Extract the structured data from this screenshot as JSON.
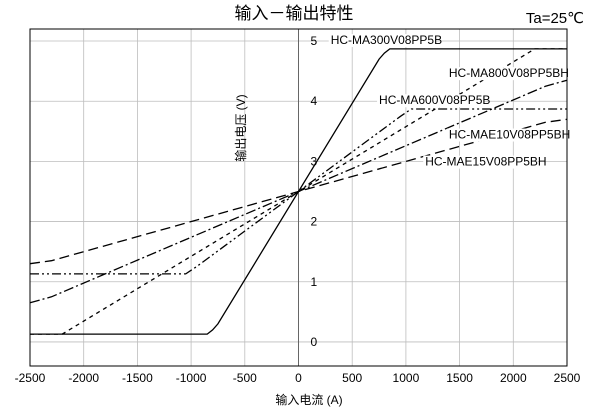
{
  "chart_data": {
    "type": "line",
    "title": "输入－输出特性",
    "condition": "Ta=25℃",
    "xlabel": "输入电流 (A)",
    "ylabel": "输出电压 (V)",
    "xlim": [
      -2500,
      2500
    ],
    "ylim": [
      -0.4,
      5.2
    ],
    "x_ticks": [
      -2500,
      -2000,
      -1500,
      -1000,
      -500,
      0,
      500,
      1000,
      1500,
      2000,
      2500
    ],
    "y_ticks": [
      0,
      1,
      2,
      3,
      4,
      5
    ],
    "grid": true,
    "series": [
      {
        "name": "HC-MA300V08PP5B",
        "dash": "solid",
        "x": [
          -2500,
          -850,
          -800,
          -750,
          750,
          800,
          850,
          2500
        ],
        "y": [
          0.13,
          0.13,
          0.2,
          0.3,
          4.7,
          4.8,
          4.87,
          4.87
        ]
      },
      {
        "name": "HC-MA800V08PP5BH",
        "dash": "dash",
        "x": [
          -2500,
          -2200,
          2200,
          2500
        ],
        "y": [
          0.13,
          0.13,
          4.87,
          4.87
        ]
      },
      {
        "name": "HC-MA600V08PP5B",
        "dash": "dashdotdot",
        "x": [
          -2500,
          -1050,
          -950,
          950,
          1050,
          2500
        ],
        "y": [
          1.13,
          1.13,
          1.25,
          3.75,
          3.87,
          3.87
        ]
      },
      {
        "name": "HC-MAE10V08PP5BH",
        "dash": "dashdot",
        "x": [
          -2500,
          -2300,
          2300,
          2500
        ],
        "y": [
          0.65,
          0.75,
          4.25,
          4.35
        ]
      },
      {
        "name": "HC-MAE15V08PP5BH",
        "dash": "longdash",
        "x": [
          -2500,
          -2300,
          2300,
          2500
        ],
        "y": [
          1.3,
          1.35,
          3.65,
          3.7
        ]
      }
    ],
    "series_labels": [
      {
        "text": "HC-MA300V08PP5B",
        "x": 300,
        "y": 4.95
      },
      {
        "text": "HC-MA800V08PP5BH",
        "x": 1400,
        "y": 4.4
      },
      {
        "text": "HC-MA600V08PP5B",
        "x": 750,
        "y": 3.95
      },
      {
        "text": "HC-MAE10V08PP5BH",
        "x": 1400,
        "y": 3.38
      },
      {
        "text": "HC-MAE15V08PP5BH",
        "x": 1180,
        "y": 2.93
      }
    ]
  }
}
